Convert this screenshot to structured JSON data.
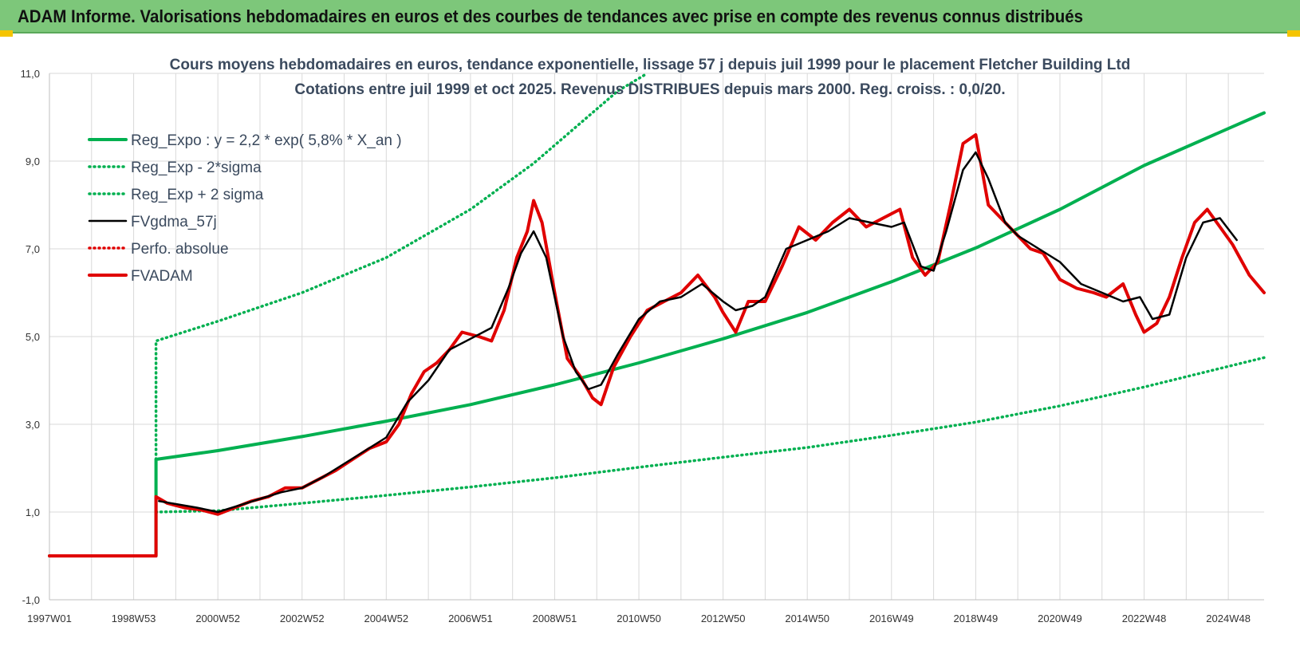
{
  "header": {
    "title": "ADAM Informe. Valorisations hebdomadaires en euros et des courbes de tendances avec prise en compte des revenus connus distribués"
  },
  "colors": {
    "header_bg": "#7dc77a",
    "trend": "#00b050",
    "smooth": "#000000",
    "price": "#e00000",
    "perf": "#e00000",
    "grid": "#d9d9d9"
  },
  "chart_data": {
    "type": "line",
    "title": "Cours moyens hebdomadaires en euros, tendance exponentielle, lissage 57 j depuis juil 1999 pour le placement Fletcher Building Ltd",
    "subtitle": "Cotations entre juil 1999 et oct 2025. Revenus DISTRIBUES depuis mars 2000. Reg. croiss. : 0,0/20.",
    "xlabel": "",
    "ylabel": "",
    "ylim": [
      -1,
      11
    ],
    "yticks": [
      "-1,0",
      "1,0",
      "3,0",
      "5,0",
      "7,0",
      "9,0",
      "11,0"
    ],
    "xlim": [
      1997.0,
      2025.85
    ],
    "xtick_labels": [
      "1997W01",
      "1998W53",
      "2000W52",
      "2002W52",
      "2004W52",
      "2006W51",
      "2008W51",
      "2010W50",
      "2012W50",
      "2014W50",
      "2016W49",
      "2018W49",
      "2020W49",
      "2022W48",
      "2024W48"
    ],
    "grid": true,
    "legend_position": "top-left",
    "series": [
      {
        "name": "Reg_Expo : y = 2,2 * exp( 5,8% *  X_an )",
        "style": "solid-thick",
        "color": "#00b050",
        "points": [
          [
            1997.0,
            0
          ],
          [
            1999.53,
            0
          ],
          [
            1999.53,
            2.2
          ],
          [
            2001,
            2.4
          ],
          [
            2003,
            2.72
          ],
          [
            2005,
            3.07
          ],
          [
            2007,
            3.45
          ],
          [
            2009,
            3.9
          ],
          [
            2011,
            4.4
          ],
          [
            2013,
            4.95
          ],
          [
            2015,
            5.55
          ],
          [
            2017,
            6.25
          ],
          [
            2019,
            7.02
          ],
          [
            2021,
            7.9
          ],
          [
            2023,
            8.9
          ],
          [
            2025.85,
            10.1
          ]
        ]
      },
      {
        "name": "Reg_Exp - 2*sigma",
        "style": "dotted",
        "color": "#00b050",
        "points": [
          [
            1999.53,
            2.2
          ],
          [
            1999.53,
            4.9
          ],
          [
            2001,
            5.35
          ],
          [
            2003,
            6.0
          ],
          [
            2005,
            6.8
          ],
          [
            2007,
            7.9
          ],
          [
            2008.5,
            8.95
          ],
          [
            2010.5,
            10.6
          ],
          [
            2011.2,
            11.2
          ]
        ]
      },
      {
        "name": "Reg_Exp + 2 sigma",
        "style": "dotted",
        "color": "#00b050",
        "points": [
          [
            1999.53,
            1.0
          ],
          [
            2001,
            1.03
          ],
          [
            2003,
            1.2
          ],
          [
            2005,
            1.38
          ],
          [
            2007,
            1.57
          ],
          [
            2009,
            1.78
          ],
          [
            2011,
            2.02
          ],
          [
            2013,
            2.25
          ],
          [
            2015,
            2.47
          ],
          [
            2017,
            2.75
          ],
          [
            2019,
            3.05
          ],
          [
            2021,
            3.42
          ],
          [
            2023,
            3.85
          ],
          [
            2025.85,
            4.52
          ]
        ]
      },
      {
        "name": "FVgdma_57j",
        "style": "solid",
        "color": "#000000",
        "points": [
          [
            1999.6,
            1.25
          ],
          [
            2000.5,
            1.1
          ],
          [
            2001.0,
            1.0
          ],
          [
            2001.5,
            1.15
          ],
          [
            2002.0,
            1.3
          ],
          [
            2002.5,
            1.45
          ],
          [
            2003.0,
            1.55
          ],
          [
            2003.5,
            1.8
          ],
          [
            2004.0,
            2.1
          ],
          [
            2004.5,
            2.4
          ],
          [
            2005.0,
            2.7
          ],
          [
            2005.5,
            3.5
          ],
          [
            2006.0,
            4.0
          ],
          [
            2006.5,
            4.7
          ],
          [
            2007.0,
            4.95
          ],
          [
            2007.5,
            5.2
          ],
          [
            2007.9,
            6.1
          ],
          [
            2008.2,
            6.9
          ],
          [
            2008.5,
            7.4
          ],
          [
            2008.8,
            6.8
          ],
          [
            2009.2,
            5.0
          ],
          [
            2009.5,
            4.2
          ],
          [
            2009.8,
            3.8
          ],
          [
            2010.1,
            3.9
          ],
          [
            2010.5,
            4.6
          ],
          [
            2011.0,
            5.4
          ],
          [
            2011.5,
            5.8
          ],
          [
            2012.0,
            5.9
          ],
          [
            2012.5,
            6.2
          ],
          [
            2013.0,
            5.8
          ],
          [
            2013.3,
            5.6
          ],
          [
            2013.7,
            5.7
          ],
          [
            2014.0,
            5.9
          ],
          [
            2014.5,
            7.0
          ],
          [
            2015.0,
            7.2
          ],
          [
            2015.5,
            7.4
          ],
          [
            2016.0,
            7.7
          ],
          [
            2016.5,
            7.6
          ],
          [
            2017.0,
            7.5
          ],
          [
            2017.3,
            7.6
          ],
          [
            2017.7,
            6.6
          ],
          [
            2018.0,
            6.5
          ],
          [
            2018.3,
            7.4
          ],
          [
            2018.7,
            8.8
          ],
          [
            2019.0,
            9.2
          ],
          [
            2019.3,
            8.6
          ],
          [
            2019.7,
            7.6
          ],
          [
            2020.0,
            7.3
          ],
          [
            2020.5,
            7.0
          ],
          [
            2021.0,
            6.7
          ],
          [
            2021.5,
            6.2
          ],
          [
            2022.0,
            6.0
          ],
          [
            2022.5,
            5.8
          ],
          [
            2022.9,
            5.9
          ],
          [
            2023.2,
            5.4
          ],
          [
            2023.6,
            5.5
          ],
          [
            2024.0,
            6.8
          ],
          [
            2024.4,
            7.6
          ],
          [
            2024.8,
            7.7
          ],
          [
            2025.2,
            7.2
          ]
        ]
      },
      {
        "name": "Perfo. absolue",
        "style": "dotted",
        "color": "#e00000",
        "points": []
      },
      {
        "name": "FVADAM",
        "style": "solid-thick",
        "color": "#e00000",
        "points": [
          [
            1997.0,
            0
          ],
          [
            1999.53,
            0
          ],
          [
            1999.53,
            1.35
          ],
          [
            1999.8,
            1.2
          ],
          [
            2000.2,
            1.1
          ],
          [
            2000.6,
            1.05
          ],
          [
            2001.0,
            0.95
          ],
          [
            2001.4,
            1.1
          ],
          [
            2001.8,
            1.25
          ],
          [
            2002.2,
            1.35
          ],
          [
            2002.6,
            1.55
          ],
          [
            2003.0,
            1.55
          ],
          [
            2003.4,
            1.75
          ],
          [
            2003.8,
            1.95
          ],
          [
            2004.2,
            2.2
          ],
          [
            2004.6,
            2.45
          ],
          [
            2005.0,
            2.6
          ],
          [
            2005.3,
            3.0
          ],
          [
            2005.6,
            3.7
          ],
          [
            2005.9,
            4.2
          ],
          [
            2006.2,
            4.4
          ],
          [
            2006.5,
            4.7
          ],
          [
            2006.8,
            5.1
          ],
          [
            2007.2,
            5.0
          ],
          [
            2007.5,
            4.9
          ],
          [
            2007.8,
            5.6
          ],
          [
            2008.1,
            6.8
          ],
          [
            2008.35,
            7.4
          ],
          [
            2008.5,
            8.1
          ],
          [
            2008.7,
            7.6
          ],
          [
            2009.0,
            6.0
          ],
          [
            2009.3,
            4.5
          ],
          [
            2009.6,
            4.1
          ],
          [
            2009.9,
            3.6
          ],
          [
            2010.1,
            3.45
          ],
          [
            2010.4,
            4.3
          ],
          [
            2010.8,
            5.0
          ],
          [
            2011.2,
            5.6
          ],
          [
            2011.6,
            5.8
          ],
          [
            2012.0,
            6.0
          ],
          [
            2012.4,
            6.4
          ],
          [
            2012.8,
            5.9
          ],
          [
            2013.0,
            5.55
          ],
          [
            2013.3,
            5.1
          ],
          [
            2013.6,
            5.8
          ],
          [
            2014.0,
            5.8
          ],
          [
            2014.4,
            6.6
          ],
          [
            2014.8,
            7.5
          ],
          [
            2015.2,
            7.2
          ],
          [
            2015.6,
            7.6
          ],
          [
            2016.0,
            7.9
          ],
          [
            2016.4,
            7.5
          ],
          [
            2016.8,
            7.7
          ],
          [
            2017.2,
            7.9
          ],
          [
            2017.5,
            6.8
          ],
          [
            2017.8,
            6.4
          ],
          [
            2018.1,
            6.7
          ],
          [
            2018.4,
            8.0
          ],
          [
            2018.7,
            9.4
          ],
          [
            2019.0,
            9.6
          ],
          [
            2019.3,
            8.0
          ],
          [
            2019.7,
            7.6
          ],
          [
            2020.0,
            7.3
          ],
          [
            2020.3,
            7.0
          ],
          [
            2020.6,
            6.9
          ],
          [
            2021.0,
            6.3
          ],
          [
            2021.4,
            6.1
          ],
          [
            2021.8,
            6.0
          ],
          [
            2022.1,
            5.9
          ],
          [
            2022.5,
            6.2
          ],
          [
            2022.8,
            5.5
          ],
          [
            2023.0,
            5.1
          ],
          [
            2023.3,
            5.3
          ],
          [
            2023.6,
            5.9
          ],
          [
            2023.9,
            6.8
          ],
          [
            2024.2,
            7.6
          ],
          [
            2024.5,
            7.9
          ],
          [
            2024.8,
            7.5
          ],
          [
            2025.1,
            7.1
          ],
          [
            2025.5,
            6.4
          ],
          [
            2025.85,
            6.0
          ]
        ]
      }
    ]
  }
}
